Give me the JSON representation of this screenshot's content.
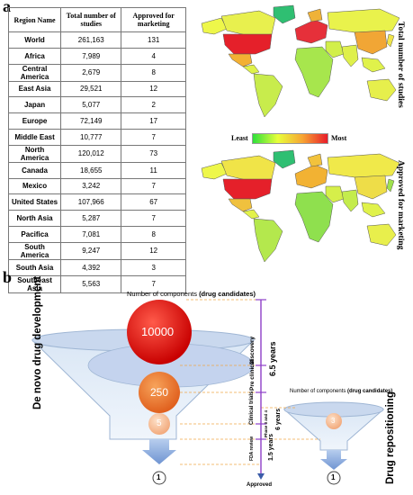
{
  "panel_a": {
    "letter": "a",
    "table": {
      "headers": [
        "Region Name",
        "Total number of studies",
        "Approved for marketing"
      ],
      "rows": [
        [
          "World",
          "261,163",
          "131"
        ],
        [
          "Africa",
          "7,989",
          "4"
        ],
        [
          "Central America",
          "2,679",
          "8"
        ],
        [
          "East Asia",
          "29,521",
          "12"
        ],
        [
          "Japan",
          "5,077",
          "2"
        ],
        [
          "Europe",
          "72,149",
          "17"
        ],
        [
          "Middle East",
          "10,777",
          "7"
        ],
        [
          "North America",
          "120,012",
          "73"
        ],
        [
          "Canada",
          "18,655",
          "11"
        ],
        [
          "Mexico",
          "3,242",
          "7"
        ],
        [
          "United States",
          "107,966",
          "67"
        ],
        [
          "North Asia",
          "5,287",
          "7"
        ],
        [
          "Pacifica",
          "7,081",
          "8"
        ],
        [
          "South America",
          "9,247",
          "12"
        ],
        [
          "South Asia",
          "4,392",
          "3"
        ],
        [
          "Southeast Asia",
          "5,563",
          "7"
        ]
      ]
    },
    "map_top_label": "Total number of studies",
    "map_bottom_label": "Approved for marketing",
    "legend": {
      "least": "Least",
      "most": "Most"
    },
    "colors": {
      "low": "#2ee03a",
      "mid": "#e8ff3a",
      "high": "#e81c2a"
    }
  },
  "panel_b": {
    "letter": "b",
    "left_title": "Number of components",
    "left_title_sub": "(drug candidates)",
    "right_title": "Number of components",
    "right_title_sub": "(drug candidates)",
    "side_left": "De novo drug development",
    "side_right": "Drug repositioning",
    "circle_counts": [
      "10000",
      "250",
      "5"
    ],
    "result_left": "1",
    "result_right": "1",
    "result_right_small": "3",
    "stages": [
      "Discovery",
      "Pre clinical",
      "Clinical trials",
      "Phase 3 and 4",
      "FDA review"
    ],
    "durations": [
      "6.5 years",
      "6 years",
      "1.5 years"
    ],
    "approved": "Approved"
  }
}
